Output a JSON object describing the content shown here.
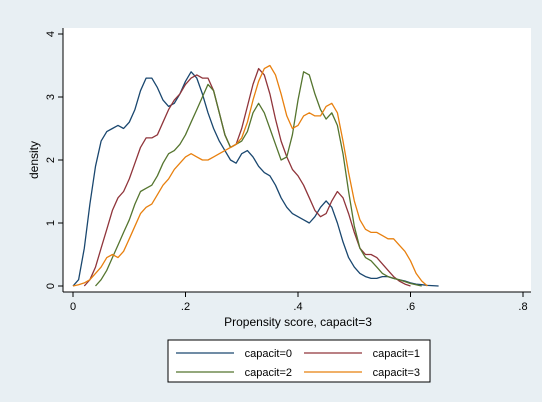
{
  "chart_data": {
    "type": "line",
    "title": "",
    "xlabel": "Propensity score, capacit=3",
    "ylabel": "density",
    "xlim": [
      0,
      0.8
    ],
    "ylim": [
      0,
      4
    ],
    "x_ticks": [
      0,
      0.2,
      0.4,
      0.6,
      0.8
    ],
    "x_tick_labels": [
      "0",
      ".2",
      ".4",
      ".6",
      ".8"
    ],
    "y_ticks": [
      0,
      1,
      2,
      3,
      4
    ],
    "y_tick_labels": [
      "0",
      "1",
      "2",
      "3",
      "4"
    ],
    "grid": false,
    "legend_position": "bottom",
    "colors": {
      "plot_background": "#ffffff",
      "figure_background": "#e8eff3",
      "axis": "#000000"
    },
    "series": [
      {
        "name": "capacit=0",
        "color": "#1a476f",
        "points": [
          [
            0.0,
            0.0
          ],
          [
            0.01,
            0.1
          ],
          [
            0.02,
            0.6
          ],
          [
            0.03,
            1.3
          ],
          [
            0.04,
            1.9
          ],
          [
            0.05,
            2.3
          ],
          [
            0.06,
            2.45
          ],
          [
            0.07,
            2.5
          ],
          [
            0.08,
            2.55
          ],
          [
            0.09,
            2.5
          ],
          [
            0.1,
            2.6
          ],
          [
            0.11,
            2.8
          ],
          [
            0.12,
            3.1
          ],
          [
            0.13,
            3.3
          ],
          [
            0.14,
            3.3
          ],
          [
            0.15,
            3.15
          ],
          [
            0.16,
            2.95
          ],
          [
            0.17,
            2.85
          ],
          [
            0.18,
            2.9
          ],
          [
            0.19,
            3.05
          ],
          [
            0.2,
            3.25
          ],
          [
            0.21,
            3.4
          ],
          [
            0.22,
            3.3
          ],
          [
            0.23,
            3.05
          ],
          [
            0.24,
            2.75
          ],
          [
            0.25,
            2.5
          ],
          [
            0.26,
            2.3
          ],
          [
            0.27,
            2.15
          ],
          [
            0.28,
            2.0
          ],
          [
            0.29,
            1.95
          ],
          [
            0.3,
            2.1
          ],
          [
            0.31,
            2.15
          ],
          [
            0.32,
            2.05
          ],
          [
            0.33,
            1.9
          ],
          [
            0.34,
            1.8
          ],
          [
            0.35,
            1.75
          ],
          [
            0.36,
            1.6
          ],
          [
            0.37,
            1.4
          ],
          [
            0.38,
            1.25
          ],
          [
            0.39,
            1.15
          ],
          [
            0.4,
            1.1
          ],
          [
            0.41,
            1.05
          ],
          [
            0.42,
            1.0
          ],
          [
            0.43,
            1.1
          ],
          [
            0.44,
            1.25
          ],
          [
            0.45,
            1.35
          ],
          [
            0.46,
            1.25
          ],
          [
            0.47,
            1.0
          ],
          [
            0.48,
            0.7
          ],
          [
            0.49,
            0.45
          ],
          [
            0.5,
            0.3
          ],
          [
            0.51,
            0.2
          ],
          [
            0.52,
            0.15
          ],
          [
            0.53,
            0.12
          ],
          [
            0.54,
            0.12
          ],
          [
            0.55,
            0.15
          ],
          [
            0.56,
            0.15
          ],
          [
            0.57,
            0.12
          ],
          [
            0.58,
            0.1
          ],
          [
            0.59,
            0.08
          ],
          [
            0.6,
            0.05
          ],
          [
            0.61,
            0.03
          ],
          [
            0.62,
            0.02
          ],
          [
            0.63,
            0.01
          ],
          [
            0.65,
            0.0
          ]
        ]
      },
      {
        "name": "capacit=1",
        "color": "#90353b",
        "points": [
          [
            0.02,
            0.0
          ],
          [
            0.03,
            0.1
          ],
          [
            0.04,
            0.3
          ],
          [
            0.05,
            0.6
          ],
          [
            0.06,
            0.9
          ],
          [
            0.07,
            1.2
          ],
          [
            0.08,
            1.4
          ],
          [
            0.09,
            1.5
          ],
          [
            0.1,
            1.7
          ],
          [
            0.11,
            1.95
          ],
          [
            0.12,
            2.2
          ],
          [
            0.13,
            2.35
          ],
          [
            0.14,
            2.35
          ],
          [
            0.15,
            2.4
          ],
          [
            0.16,
            2.6
          ],
          [
            0.17,
            2.8
          ],
          [
            0.18,
            2.95
          ],
          [
            0.19,
            3.05
          ],
          [
            0.2,
            3.2
          ],
          [
            0.21,
            3.3
          ],
          [
            0.22,
            3.35
          ],
          [
            0.23,
            3.3
          ],
          [
            0.24,
            3.3
          ],
          [
            0.25,
            3.1
          ],
          [
            0.26,
            2.75
          ],
          [
            0.27,
            2.4
          ],
          [
            0.28,
            2.2
          ],
          [
            0.29,
            2.25
          ],
          [
            0.3,
            2.5
          ],
          [
            0.31,
            2.85
          ],
          [
            0.32,
            3.2
          ],
          [
            0.33,
            3.45
          ],
          [
            0.34,
            3.35
          ],
          [
            0.35,
            3.05
          ],
          [
            0.36,
            2.65
          ],
          [
            0.37,
            2.3
          ],
          [
            0.38,
            2.05
          ],
          [
            0.39,
            1.85
          ],
          [
            0.4,
            1.75
          ],
          [
            0.41,
            1.6
          ],
          [
            0.42,
            1.4
          ],
          [
            0.43,
            1.2
          ],
          [
            0.44,
            1.1
          ],
          [
            0.45,
            1.15
          ],
          [
            0.46,
            1.35
          ],
          [
            0.47,
            1.5
          ],
          [
            0.48,
            1.4
          ],
          [
            0.49,
            1.15
          ],
          [
            0.5,
            0.85
          ],
          [
            0.51,
            0.6
          ],
          [
            0.52,
            0.5
          ],
          [
            0.53,
            0.5
          ],
          [
            0.54,
            0.45
          ],
          [
            0.55,
            0.35
          ],
          [
            0.56,
            0.25
          ],
          [
            0.57,
            0.15
          ],
          [
            0.58,
            0.08
          ],
          [
            0.59,
            0.03
          ],
          [
            0.6,
            0.0
          ]
        ]
      },
      {
        "name": "capacit=2",
        "color": "#55752f",
        "points": [
          [
            0.04,
            0.0
          ],
          [
            0.05,
            0.1
          ],
          [
            0.06,
            0.25
          ],
          [
            0.07,
            0.45
          ],
          [
            0.08,
            0.65
          ],
          [
            0.09,
            0.85
          ],
          [
            0.1,
            1.05
          ],
          [
            0.11,
            1.3
          ],
          [
            0.12,
            1.5
          ],
          [
            0.13,
            1.55
          ],
          [
            0.14,
            1.6
          ],
          [
            0.15,
            1.75
          ],
          [
            0.16,
            1.95
          ],
          [
            0.17,
            2.1
          ],
          [
            0.18,
            2.15
          ],
          [
            0.19,
            2.25
          ],
          [
            0.2,
            2.4
          ],
          [
            0.21,
            2.6
          ],
          [
            0.22,
            2.8
          ],
          [
            0.23,
            3.0
          ],
          [
            0.24,
            3.2
          ],
          [
            0.25,
            3.1
          ],
          [
            0.26,
            2.75
          ],
          [
            0.27,
            2.4
          ],
          [
            0.28,
            2.2
          ],
          [
            0.29,
            2.25
          ],
          [
            0.3,
            2.3
          ],
          [
            0.31,
            2.45
          ],
          [
            0.32,
            2.75
          ],
          [
            0.33,
            2.9
          ],
          [
            0.34,
            2.75
          ],
          [
            0.35,
            2.5
          ],
          [
            0.36,
            2.25
          ],
          [
            0.37,
            2.0
          ],
          [
            0.38,
            2.05
          ],
          [
            0.39,
            2.4
          ],
          [
            0.4,
            2.95
          ],
          [
            0.41,
            3.4
          ],
          [
            0.42,
            3.35
          ],
          [
            0.43,
            3.05
          ],
          [
            0.44,
            2.8
          ],
          [
            0.45,
            2.65
          ],
          [
            0.46,
            2.75
          ],
          [
            0.47,
            2.55
          ],
          [
            0.48,
            2.1
          ],
          [
            0.49,
            1.5
          ],
          [
            0.5,
            0.95
          ],
          [
            0.51,
            0.6
          ],
          [
            0.52,
            0.45
          ],
          [
            0.53,
            0.4
          ],
          [
            0.54,
            0.3
          ],
          [
            0.55,
            0.2
          ],
          [
            0.56,
            0.15
          ],
          [
            0.57,
            0.12
          ],
          [
            0.58,
            0.1
          ],
          [
            0.59,
            0.07
          ],
          [
            0.6,
            0.04
          ],
          [
            0.61,
            0.02
          ],
          [
            0.62,
            0.0
          ]
        ]
      },
      {
        "name": "capacit=3",
        "color": "#e8800f",
        "points": [
          [
            0.0,
            0.0
          ],
          [
            0.01,
            0.02
          ],
          [
            0.02,
            0.05
          ],
          [
            0.03,
            0.1
          ],
          [
            0.04,
            0.2
          ],
          [
            0.05,
            0.3
          ],
          [
            0.06,
            0.45
          ],
          [
            0.07,
            0.5
          ],
          [
            0.08,
            0.45
          ],
          [
            0.09,
            0.55
          ],
          [
            0.1,
            0.75
          ],
          [
            0.11,
            0.95
          ],
          [
            0.12,
            1.15
          ],
          [
            0.13,
            1.25
          ],
          [
            0.14,
            1.3
          ],
          [
            0.15,
            1.45
          ],
          [
            0.16,
            1.6
          ],
          [
            0.17,
            1.7
          ],
          [
            0.18,
            1.85
          ],
          [
            0.19,
            1.95
          ],
          [
            0.2,
            2.05
          ],
          [
            0.21,
            2.1
          ],
          [
            0.22,
            2.05
          ],
          [
            0.23,
            2.0
          ],
          [
            0.24,
            2.0
          ],
          [
            0.25,
            2.05
          ],
          [
            0.26,
            2.1
          ],
          [
            0.27,
            2.15
          ],
          [
            0.28,
            2.2
          ],
          [
            0.29,
            2.25
          ],
          [
            0.3,
            2.35
          ],
          [
            0.31,
            2.6
          ],
          [
            0.32,
            2.95
          ],
          [
            0.33,
            3.25
          ],
          [
            0.34,
            3.45
          ],
          [
            0.35,
            3.5
          ],
          [
            0.36,
            3.35
          ],
          [
            0.37,
            3.05
          ],
          [
            0.38,
            2.7
          ],
          [
            0.39,
            2.5
          ],
          [
            0.4,
            2.55
          ],
          [
            0.41,
            2.7
          ],
          [
            0.42,
            2.75
          ],
          [
            0.43,
            2.7
          ],
          [
            0.44,
            2.7
          ],
          [
            0.45,
            2.85
          ],
          [
            0.46,
            2.9
          ],
          [
            0.47,
            2.75
          ],
          [
            0.48,
            2.3
          ],
          [
            0.49,
            1.8
          ],
          [
            0.5,
            1.35
          ],
          [
            0.51,
            1.05
          ],
          [
            0.52,
            0.9
          ],
          [
            0.53,
            0.85
          ],
          [
            0.54,
            0.85
          ],
          [
            0.55,
            0.8
          ],
          [
            0.56,
            0.75
          ],
          [
            0.57,
            0.75
          ],
          [
            0.58,
            0.65
          ],
          [
            0.59,
            0.55
          ],
          [
            0.6,
            0.4
          ],
          [
            0.61,
            0.2
          ],
          [
            0.62,
            0.08
          ],
          [
            0.63,
            0.0
          ]
        ]
      }
    ]
  }
}
